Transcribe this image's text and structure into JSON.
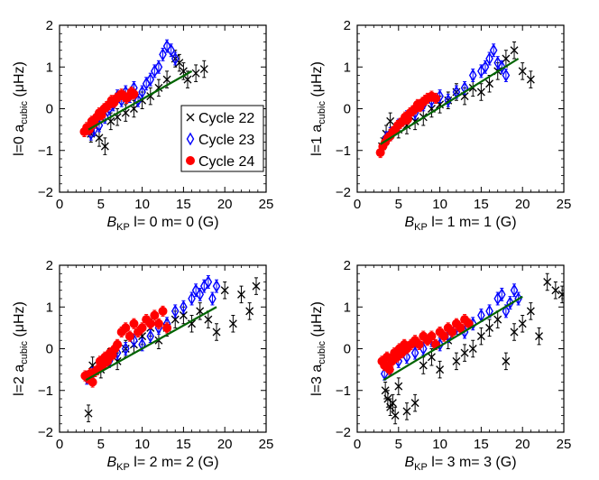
{
  "figure": {
    "legend": [
      {
        "name": "Cycle 22",
        "marker": "x",
        "color": "#000000"
      },
      {
        "name": "Cycle 23",
        "marker": "diamond",
        "color": "#0000ff"
      },
      {
        "name": "Cycle 24",
        "marker": "circle",
        "color": "#ff0000"
      }
    ],
    "colors": {
      "cycle22": "#000000",
      "cycle23": "#0000ff",
      "cycle24": "#ff0000",
      "fit": "#006400"
    }
  },
  "chart_data": [
    {
      "type": "scatter",
      "title": "",
      "xlabel_main": "B",
      "xlabel_sub": "KP",
      "xlabel_rest": " l= 0 m=  0 (G)",
      "ylabel_main": "l=0  a",
      "ylabel_sub": "cubic",
      "ylabel_rest": "  (μHz)",
      "xlim": [
        0,
        25
      ],
      "ylim": [
        -2,
        2
      ],
      "xticks": [
        "0",
        "5",
        "10",
        "15",
        "20",
        "25"
      ],
      "yticks": [
        "−2",
        "−1",
        "0",
        "1",
        "2"
      ],
      "legend_position": "center-right",
      "fit": {
        "x": [
          3.5,
          16
        ],
        "y": [
          -0.5,
          0.9
        ]
      },
      "series": [
        {
          "name": "Cycle 22",
          "x": [
            3.8,
            4.2,
            4.8,
            5.5,
            6.2,
            7.0,
            8.0,
            9.0,
            10.0,
            11.0,
            12.0,
            13.0,
            14.0,
            14.5,
            15.0,
            15.5,
            16.5,
            17.5
          ],
          "y": [
            -0.6,
            -0.4,
            -0.7,
            -0.9,
            -0.3,
            -0.2,
            -0.1,
            0.0,
            0.2,
            0.3,
            0.5,
            0.7,
            1.2,
            1.1,
            0.9,
            0.7,
            0.85,
            0.95
          ]
        },
        {
          "name": "Cycle 23",
          "x": [
            3.8,
            4.2,
            4.8,
            5.5,
            6.0,
            6.5,
            7.0,
            7.5,
            8.0,
            8.5,
            9.0,
            9.5,
            10.0,
            10.5,
            11.0,
            11.5,
            12.0,
            12.5,
            13.0,
            13.5,
            14.0
          ],
          "y": [
            -0.6,
            -0.5,
            -0.4,
            -0.2,
            0.0,
            0.1,
            0.3,
            0.2,
            0.4,
            0.3,
            0.5,
            0.2,
            0.4,
            0.6,
            0.7,
            0.9,
            1.0,
            1.3,
            1.5,
            1.4,
            1.2
          ]
        },
        {
          "name": "Cycle 24",
          "x": [
            3.0,
            3.3,
            3.6,
            3.9,
            4.2,
            4.5,
            4.8,
            5.1,
            5.4,
            5.7,
            6.0,
            6.3,
            6.6,
            6.9,
            7.2,
            7.5,
            7.8,
            8.1,
            8.4,
            8.7,
            9.0
          ],
          "y": [
            -0.55,
            -0.45,
            -0.5,
            -0.3,
            -0.35,
            -0.2,
            -0.1,
            -0.15,
            0.0,
            0.05,
            0.1,
            0.2,
            0.15,
            0.25,
            0.3,
            0.35,
            0.3,
            0.25,
            0.3,
            0.4,
            0.35
          ]
        }
      ]
    },
    {
      "type": "scatter",
      "title": "",
      "xlabel_main": "B",
      "xlabel_sub": "KP",
      "xlabel_rest": " l= 1 m=  1 (G)",
      "ylabel_main": "l=1  a",
      "ylabel_sub": "cubic",
      "ylabel_rest": "  (μHz)",
      "xlim": [
        0,
        25
      ],
      "ylim": [
        -2,
        2
      ],
      "xticks": [
        "0",
        "5",
        "10",
        "15",
        "20",
        "25"
      ],
      "yticks": [
        "−2",
        "−1",
        "0",
        "1",
        "2"
      ],
      "legend_position": "none",
      "fit": {
        "x": [
          2.8,
          19.5
        ],
        "y": [
          -0.85,
          1.2
        ]
      },
      "series": [
        {
          "name": "Cycle 22",
          "x": [
            3.0,
            3.5,
            4.0,
            5.0,
            6.0,
            7.0,
            8.0,
            9.0,
            10.0,
            11.0,
            12.0,
            13.0,
            14.0,
            15.0,
            16.0,
            17.0,
            18.0,
            19.0,
            20.0,
            21.0
          ],
          "y": [
            -0.9,
            -0.6,
            -0.3,
            -0.5,
            -0.4,
            -0.3,
            -0.2,
            0.0,
            0.1,
            0.2,
            0.4,
            0.3,
            0.5,
            0.4,
            0.6,
            0.9,
            1.2,
            1.4,
            0.9,
            0.7
          ]
        },
        {
          "name": "Cycle 23",
          "x": [
            3.5,
            4.0,
            5.0,
            6.0,
            7.0,
            8.0,
            9.0,
            10.0,
            11.0,
            12.0,
            13.0,
            14.0,
            15.0,
            15.5,
            16.0,
            16.5,
            17.0,
            17.5,
            18.0
          ],
          "y": [
            -0.7,
            -0.6,
            -0.4,
            -0.2,
            -0.1,
            0.1,
            0.2,
            0.3,
            0.2,
            0.4,
            0.5,
            0.8,
            0.9,
            1.0,
            1.2,
            1.4,
            1.1,
            1.0,
            0.8
          ]
        },
        {
          "name": "Cycle 24",
          "x": [
            2.8,
            3.1,
            3.4,
            3.7,
            4.0,
            4.3,
            4.6,
            4.9,
            5.2,
            5.5,
            5.8,
            6.1,
            6.4,
            6.7,
            7.0,
            7.3,
            7.6,
            7.9,
            8.2,
            8.5,
            9.0,
            9.5
          ],
          "y": [
            -1.05,
            -0.9,
            -0.8,
            -0.7,
            -0.65,
            -0.55,
            -0.5,
            -0.4,
            -0.35,
            -0.3,
            -0.2,
            -0.25,
            -0.1,
            -0.05,
            0.0,
            0.1,
            0.05,
            0.15,
            0.2,
            0.25,
            0.3,
            0.25
          ]
        }
      ]
    },
    {
      "type": "scatter",
      "title": "",
      "xlabel_main": "B",
      "xlabel_sub": "KP",
      "xlabel_rest": " l= 2 m=  2 (G)",
      "ylabel_main": "l=2  a",
      "ylabel_sub": "cubic",
      "ylabel_rest": "  (μHz)",
      "xlim": [
        0,
        25
      ],
      "ylim": [
        -2,
        2
      ],
      "xticks": [
        "0",
        "5",
        "10",
        "15",
        "20",
        "25"
      ],
      "yticks": [
        "−2",
        "−1",
        "0",
        "1",
        "2"
      ],
      "legend_position": "none",
      "fit": {
        "x": [
          3.2,
          19
        ],
        "y": [
          -0.75,
          1.0
        ]
      },
      "series": [
        {
          "name": "Cycle 22",
          "x": [
            3.5,
            4.0,
            5.0,
            6.0,
            7.0,
            8.0,
            9.0,
            10.0,
            11.0,
            12.0,
            13.0,
            14.0,
            15.0,
            16.0,
            17.0,
            18.0,
            19.0,
            20.0,
            21.0,
            22.0,
            23.0,
            23.8
          ],
          "y": [
            -1.55,
            -0.4,
            -0.5,
            -0.2,
            -0.3,
            0.0,
            0.1,
            0.3,
            0.5,
            0.2,
            0.5,
            0.7,
            0.8,
            0.6,
            0.9,
            0.7,
            0.4,
            1.4,
            0.6,
            1.3,
            0.9,
            1.5
          ]
        },
        {
          "name": "Cycle 23",
          "x": [
            3.3,
            4.0,
            5.0,
            6.0,
            7.0,
            8.0,
            9.0,
            10.0,
            11.0,
            12.0,
            13.0,
            14.0,
            15.0,
            16.0,
            16.5,
            17.0,
            17.5,
            18.0,
            18.5,
            19.0
          ],
          "y": [
            -0.7,
            -0.6,
            -0.4,
            -0.3,
            -0.1,
            0.0,
            0.2,
            0.1,
            0.3,
            0.5,
            0.6,
            0.9,
            1.0,
            1.2,
            1.4,
            1.3,
            1.5,
            1.6,
            1.2,
            1.5
          ]
        },
        {
          "name": "Cycle 24",
          "x": [
            3.1,
            3.4,
            3.7,
            4.0,
            4.3,
            4.6,
            4.9,
            5.2,
            5.5,
            5.8,
            6.1,
            6.4,
            6.7,
            7.0,
            7.5,
            8.0,
            8.5,
            9.0,
            9.5,
            10.0,
            10.5,
            11.0,
            11.5,
            12.0,
            12.5,
            13.0
          ],
          "y": [
            -0.65,
            -0.7,
            -0.6,
            -0.8,
            -0.55,
            -0.5,
            -0.3,
            -0.4,
            -0.2,
            -0.3,
            -0.1,
            -0.15,
            0.0,
            0.1,
            0.4,
            0.5,
            0.3,
            0.6,
            0.4,
            0.5,
            0.7,
            0.6,
            0.8,
            0.6,
            0.9,
            0.5
          ]
        }
      ]
    },
    {
      "type": "scatter",
      "title": "",
      "xlabel_main": "B",
      "xlabel_sub": "KP",
      "xlabel_rest": " l= 3 m=  3 (G)",
      "ylabel_main": "l=3  a",
      "ylabel_sub": "cubic",
      "ylabel_rest": "  (μHz)",
      "xlim": [
        0,
        25
      ],
      "ylim": [
        -2,
        2
      ],
      "xticks": [
        "0",
        "5",
        "10",
        "15",
        "20",
        "25"
      ],
      "yticks": [
        "−2",
        "−1",
        "0",
        "1",
        "2"
      ],
      "legend_position": "none",
      "fit": {
        "x": [
          3.2,
          20
        ],
        "y": [
          -0.75,
          1.25
        ]
      },
      "series": [
        {
          "name": "Cycle 22",
          "x": [
            3.4,
            3.7,
            4.0,
            4.3,
            4.6,
            5.0,
            6.0,
            7.0,
            8.0,
            9.0,
            10.0,
            11.0,
            12.0,
            13.0,
            14.0,
            15.0,
            16.0,
            17.0,
            18.0,
            19.0,
            20.0,
            21.0,
            22.0,
            23.0,
            24.0,
            24.8
          ],
          "y": [
            -1.0,
            -1.2,
            -1.4,
            -1.3,
            -1.6,
            -0.9,
            -1.5,
            -1.3,
            -0.4,
            -0.2,
            -0.5,
            0.2,
            -0.3,
            -0.1,
            0.0,
            0.3,
            0.5,
            0.7,
            -0.3,
            0.4,
            0.6,
            0.9,
            0.3,
            1.6,
            1.4,
            1.3
          ]
        },
        {
          "name": "Cycle 23",
          "x": [
            3.3,
            4.0,
            5.0,
            6.0,
            7.0,
            8.0,
            9.0,
            10.0,
            11.0,
            12.0,
            13.0,
            14.0,
            15.0,
            16.0,
            17.0,
            17.5,
            18.0,
            18.5,
            19.0,
            19.5
          ],
          "y": [
            -0.6,
            -0.5,
            -0.3,
            -0.2,
            -0.1,
            0.0,
            0.2,
            0.1,
            0.3,
            0.5,
            0.4,
            0.6,
            0.8,
            0.9,
            1.2,
            1.3,
            0.9,
            1.1,
            1.4,
            1.2
          ]
        },
        {
          "name": "Cycle 24",
          "x": [
            3.0,
            3.3,
            3.6,
            3.9,
            4.2,
            4.5,
            4.8,
            5.1,
            5.4,
            5.7,
            6.0,
            6.5,
            7.0,
            7.5,
            8.0,
            8.5,
            9.0,
            9.5,
            10.0,
            10.5,
            11.0,
            11.5,
            12.0,
            12.5,
            13.0,
            13.5
          ],
          "y": [
            -0.3,
            -0.4,
            -0.2,
            -0.5,
            -0.3,
            -0.1,
            -0.2,
            0.0,
            -0.1,
            0.1,
            0.0,
            0.1,
            0.2,
            0.1,
            0.3,
            0.2,
            0.3,
            0.1,
            0.4,
            0.3,
            0.5,
            0.4,
            0.6,
            0.5,
            0.7,
            0.6
          ]
        }
      ]
    }
  ]
}
